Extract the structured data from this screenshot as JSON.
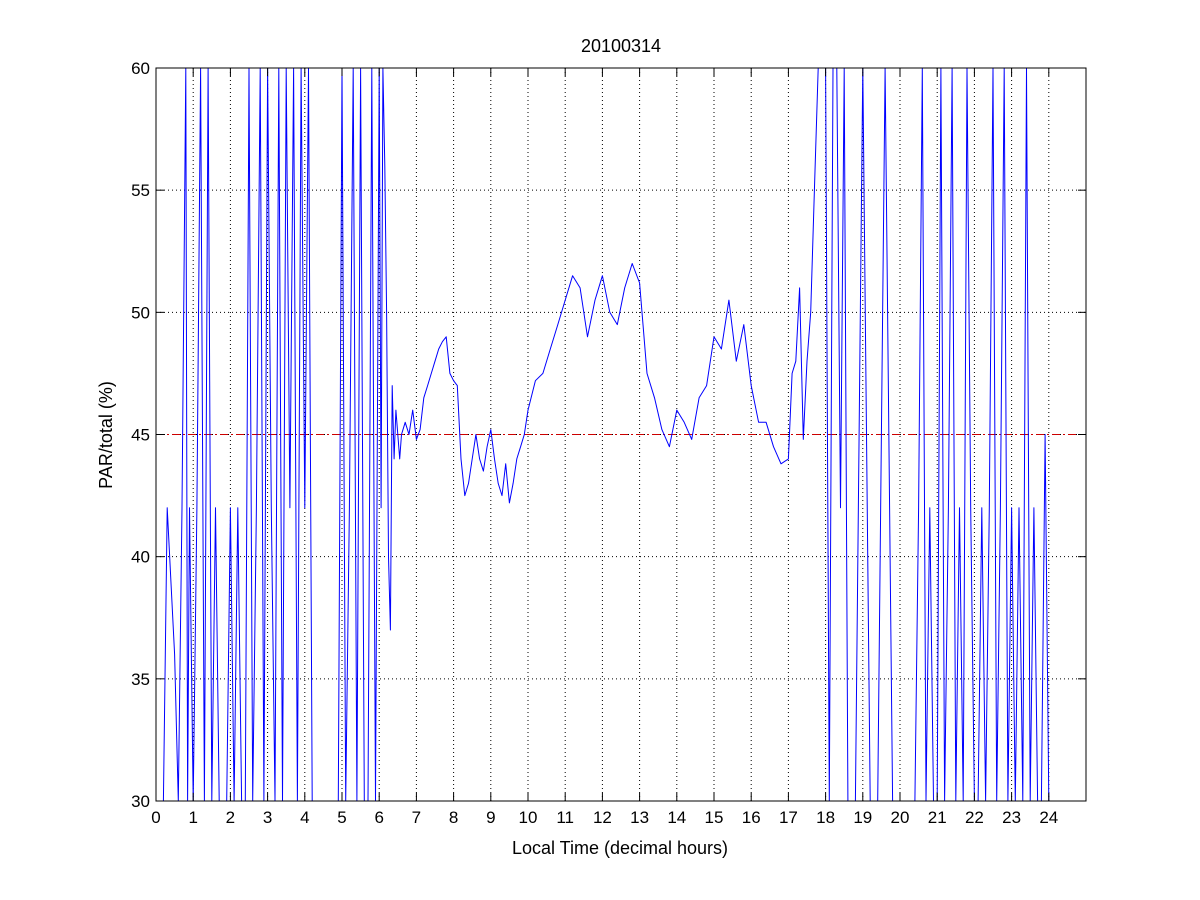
{
  "chart_data": {
    "type": "line",
    "title": "20100314",
    "xlabel": "Local Time (decimal hours)",
    "ylabel": "PAR/total (%)",
    "xlim": [
      0,
      25
    ],
    "ylim": [
      30,
      60
    ],
    "xticks": [
      0,
      1,
      2,
      3,
      4,
      5,
      6,
      7,
      8,
      9,
      10,
      11,
      12,
      13,
      14,
      15,
      16,
      17,
      18,
      19,
      20,
      21,
      22,
      23,
      24
    ],
    "xtick_labels": [
      "0",
      "1",
      "2",
      "3",
      "4",
      "5",
      "6",
      "7",
      "8",
      "9",
      "10",
      "11",
      "12",
      "13",
      "14",
      "15",
      "16",
      "17",
      "18",
      "19",
      "20",
      "21",
      "22",
      "23",
      "24"
    ],
    "yticks": [
      30,
      35,
      40,
      45,
      50,
      55,
      60
    ],
    "ytick_labels": [
      "30",
      "35",
      "40",
      "45",
      "50",
      "55",
      "60"
    ],
    "grid": true,
    "reference_line": {
      "y": 45,
      "style": "dash-dot",
      "color": "#cc0000"
    },
    "series": [
      {
        "color": "#0000ff",
        "x": [
          0.2,
          0.3,
          0.5,
          0.6,
          0.7,
          0.8,
          0.85,
          0.9,
          1.0,
          1.1,
          1.2,
          1.3,
          1.4,
          1.5,
          1.6,
          1.7,
          1.8,
          1.9,
          2.0,
          2.1,
          2.2,
          2.3,
          2.4,
          2.5,
          2.6,
          2.7,
          2.8,
          2.9,
          3.0,
          3.1,
          3.2,
          3.3,
          3.4,
          3.5,
          3.6,
          3.7,
          3.8,
          3.9,
          4.0,
          4.1,
          4.2,
          4.3,
          4.5,
          4.7,
          4.9,
          5.0,
          5.1,
          5.2,
          5.3,
          5.4,
          5.5,
          5.6,
          5.7,
          5.8,
          5.9,
          6.0,
          6.05,
          6.1,
          6.15,
          6.2,
          6.25,
          6.3,
          6.35,
          6.4,
          6.45,
          6.5,
          6.55,
          6.6,
          6.7,
          6.8,
          6.9,
          7.0,
          7.1,
          7.2,
          7.3,
          7.4,
          7.5,
          7.6,
          7.7,
          7.8,
          7.9,
          8.0,
          8.1,
          8.2,
          8.3,
          8.4,
          8.5,
          8.6,
          8.7,
          8.8,
          8.9,
          9.0,
          9.1,
          9.2,
          9.3,
          9.4,
          9.5,
          9.6,
          9.7,
          9.8,
          9.9,
          10.0,
          10.2,
          10.4,
          10.6,
          10.8,
          11.0,
          11.2,
          11.4,
          11.6,
          11.8,
          12.0,
          12.2,
          12.4,
          12.6,
          12.8,
          13.0,
          13.2,
          13.4,
          13.6,
          13.8,
          14.0,
          14.2,
          14.4,
          14.6,
          14.8,
          15.0,
          15.2,
          15.4,
          15.6,
          15.8,
          16.0,
          16.2,
          16.4,
          16.6,
          16.8,
          17.0,
          17.1,
          17.2,
          17.3,
          17.4,
          17.5,
          17.6,
          17.7,
          17.8,
          17.9,
          18.0,
          18.1,
          18.2,
          18.3,
          18.4,
          18.5,
          18.6,
          18.8,
          19.0,
          19.2,
          19.4,
          19.6,
          19.8,
          20.0,
          20.2,
          20.4,
          20.5,
          20.6,
          20.7,
          20.8,
          20.9,
          21.0,
          21.1,
          21.2,
          21.3,
          21.4,
          21.5,
          21.6,
          21.7,
          21.8,
          21.9,
          22.0,
          22.1,
          22.2,
          22.3,
          22.4,
          22.5,
          22.6,
          22.7,
          22.8,
          22.9,
          23.0,
          23.1,
          23.2,
          23.3,
          23.4,
          23.5,
          23.6,
          23.7,
          23.8,
          23.9,
          24.0
        ],
        "y": [
          30,
          42,
          36,
          30,
          42,
          60,
          30,
          42,
          30,
          42,
          60,
          30,
          60,
          30,
          42,
          30,
          30,
          30,
          42,
          30,
          42,
          30,
          30,
          60,
          30,
          42,
          60,
          30,
          60,
          42,
          30,
          60,
          30,
          60,
          42,
          60,
          30,
          60,
          42,
          60,
          30,
          30,
          30,
          30,
          30,
          60,
          30,
          42,
          60,
          30,
          60,
          30,
          30,
          60,
          30,
          60,
          42,
          60,
          56,
          50,
          40,
          37,
          47,
          44,
          46,
          45,
          44,
          45,
          45.5,
          45,
          46,
          44.8,
          45.2,
          46.5,
          47,
          47.5,
          48,
          48.5,
          48.8,
          49,
          47.5,
          47.2,
          47,
          44,
          42.5,
          43,
          44,
          45,
          44,
          43.5,
          44.5,
          45.2,
          44,
          43,
          42.5,
          43.8,
          42.2,
          43,
          44,
          44.5,
          45,
          46,
          47.2,
          47.5,
          48.5,
          49.5,
          50.5,
          51.5,
          51,
          49,
          50.5,
          51.5,
          50,
          49.5,
          51,
          52,
          51.2,
          47.5,
          46.5,
          45.2,
          44.5,
          46,
          45.5,
          44.8,
          46.5,
          47,
          49,
          48.5,
          50.5,
          48,
          49.5,
          47,
          45.5,
          45.5,
          44.5,
          43.8,
          44,
          47.5,
          48,
          51,
          44.8,
          48,
          50,
          55,
          60,
          60,
          60,
          30,
          60,
          60,
          42,
          60,
          30,
          30,
          60,
          30,
          30,
          60,
          30,
          30,
          30,
          30,
          42,
          60,
          30,
          42,
          30,
          30,
          60,
          30,
          42,
          60,
          30,
          42,
          30,
          60,
          42,
          30,
          30,
          42,
          30,
          42,
          60,
          30,
          42,
          60,
          30,
          42,
          30,
          42,
          30,
          60,
          30,
          42,
          30,
          30,
          45,
          30
        ]
      }
    ]
  }
}
